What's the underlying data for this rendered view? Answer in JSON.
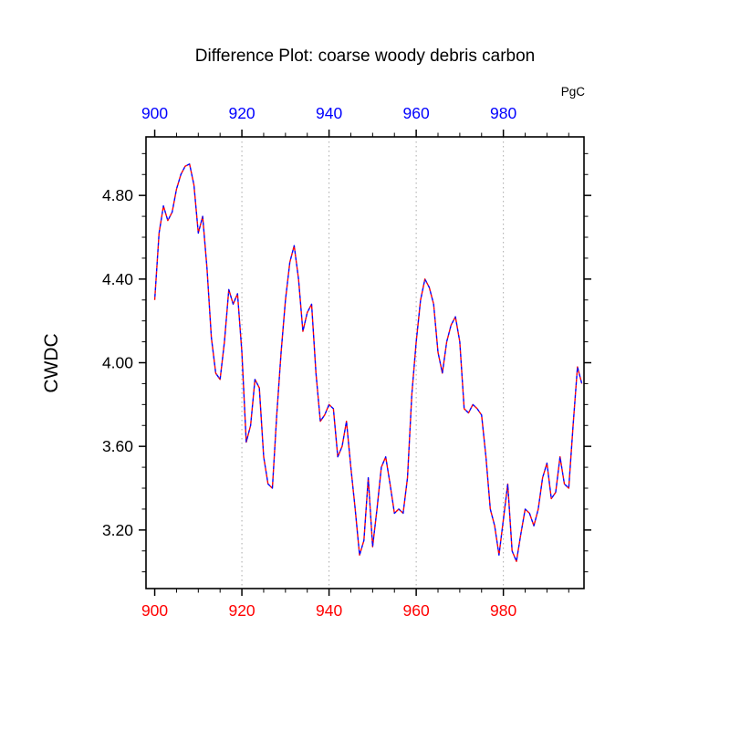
{
  "page": {
    "background": "#ffffff"
  },
  "chart_data": {
    "type": "line",
    "title": "Difference Plot: coarse woody debris carbon",
    "units_label": "PgC",
    "ylabel": "CWDC",
    "xlabel": "",
    "xlim": [
      898,
      998.5
    ],
    "ylim": [
      2.92,
      5.08
    ],
    "xticks": [
      900,
      920,
      940,
      960,
      980
    ],
    "xtick_labels": [
      "900",
      "920",
      "940",
      "960",
      "980"
    ],
    "yticks": [
      3.2,
      3.6,
      4.0,
      4.4,
      4.8
    ],
    "ytick_labels": [
      "3.20",
      "3.60",
      "4.00",
      "4.40",
      "4.80"
    ],
    "x_minor_step": 5,
    "y_minor_step": 0.1,
    "grid": "vertical-dotted",
    "grid_x": [
      920,
      940,
      960,
      980
    ],
    "grid_color": "#aaaaaa",
    "top_axis_label_color": "#0000ff",
    "bottom_axis_label_color": "#ff0000",
    "axis_frame_color": "#000000",
    "legend_position": "none",
    "x_start": 900,
    "x_step": 1,
    "series": [
      {
        "name": "difference-curve-red-dashed",
        "color": "#ff0000",
        "style": "dashed"
      },
      {
        "name": "difference-curve-blue-dashed",
        "color": "#0000ff",
        "style": "dashed"
      }
    ],
    "y": [
      4.3,
      4.62,
      4.75,
      4.68,
      4.72,
      4.83,
      4.9,
      4.94,
      4.95,
      4.85,
      4.62,
      4.7,
      4.45,
      4.12,
      3.95,
      3.92,
      4.1,
      4.35,
      4.28,
      4.33,
      4.05,
      3.62,
      3.7,
      3.92,
      3.88,
      3.55,
      3.42,
      3.4,
      3.75,
      4.05,
      4.3,
      4.48,
      4.56,
      4.4,
      4.15,
      4.24,
      4.28,
      3.95,
      3.72,
      3.75,
      3.8,
      3.78,
      3.55,
      3.6,
      3.72,
      3.5,
      3.3,
      3.08,
      3.15,
      3.45,
      3.12,
      3.3,
      3.5,
      3.55,
      3.42,
      3.28,
      3.3,
      3.28,
      3.45,
      3.85,
      4.1,
      4.3,
      4.4,
      4.36,
      4.28,
      4.05,
      3.95,
      4.1,
      4.18,
      4.22,
      4.1,
      3.78,
      3.76,
      3.8,
      3.78,
      3.75,
      3.55,
      3.3,
      3.22,
      3.08,
      3.25,
      3.42,
      3.1,
      3.05,
      3.18,
      3.3,
      3.28,
      3.22,
      3.3,
      3.45,
      3.52,
      3.35,
      3.38,
      3.55,
      3.42,
      3.4,
      3.7,
      3.98,
      3.9
    ]
  }
}
